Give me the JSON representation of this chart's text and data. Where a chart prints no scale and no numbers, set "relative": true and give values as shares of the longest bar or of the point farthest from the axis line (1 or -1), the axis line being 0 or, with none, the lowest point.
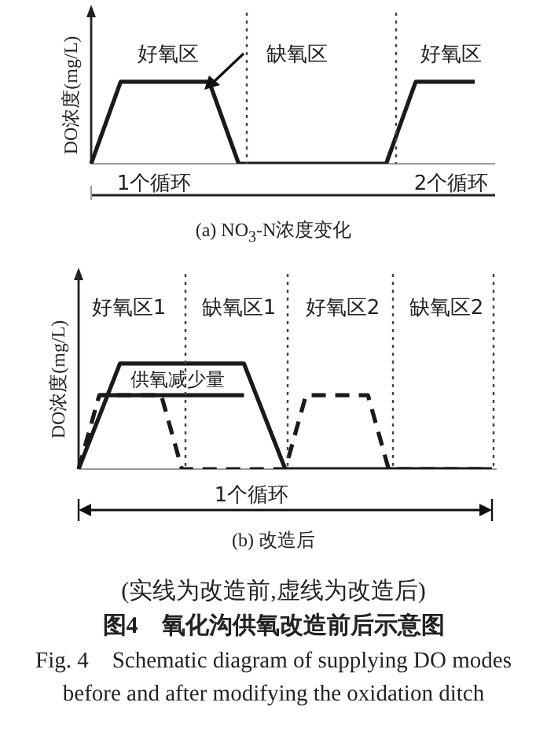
{
  "chart_data": [
    {
      "type": "line",
      "relative": true,
      "ylabel": "DO浓度(mg/L)",
      "xlabel": "(a) NO$_{3}$-N浓度变化",
      "legend": false,
      "marker": "none",
      "categories": [
        null,
        null,
        null,
        null,
        null,
        null,
        null,
        null,
        null,
        null,
        null,
        null,
        null,
        null
      ],
      "series": [
        {
          "color": "#1a1a1a",
          "line_style": "solid",
          "values": [
            0,
            1,
            1,
            1,
            1,
            0,
            0,
            0,
            0,
            0,
            0,
            1,
            1,
            1
          ]
        }
      ],
      "annotations": [
        "好氧区",
        "缺氧区",
        "好氧区",
        "1个循环",
        "2个循环"
      ]
    },
    {
      "type": "line",
      "relative": true,
      "ylabel": "DO浓度(mg/L)",
      "xlabel": "(b) 改造后",
      "legend": false,
      "marker": "none",
      "categories": [
        null,
        null,
        null,
        null,
        null,
        null,
        null,
        null,
        null,
        null,
        null,
        null,
        null,
        null,
        null,
        null,
        null,
        null,
        null,
        null,
        null
      ],
      "series": [
        {
          "color": "#1a1a1a",
          "line_style": "solid",
          "values": [
            0,
            0.5,
            1,
            1,
            1,
            1,
            1,
            1,
            1,
            0.5,
            0,
            0,
            0,
            0,
            0,
            0,
            0,
            0,
            0,
            0,
            0
          ]
        },
        {
          "color": "#1a1a1a",
          "line_style": "dashed",
          "values": [
            0,
            0.7,
            0.7,
            0.7,
            0.7,
            0,
            0,
            0,
            0,
            0,
            0,
            0.7,
            0.7,
            0.7,
            0.7,
            0,
            0,
            0,
            0,
            0,
            0
          ]
        },
        {
          "color": "#1a1a1a",
          "line_style": "solid",
          "values": [
            null,
            0.7,
            0.7,
            0.7,
            0.7,
            0.7,
            0.7,
            0.7,
            0.7,
            null,
            null,
            null,
            null,
            null,
            null,
            null,
            null,
            null,
            null,
            null,
            null
          ]
        }
      ],
      "annotations": [
        "好氧区1",
        "缺氧区1",
        "好氧区2",
        "缺氧区2",
        "供氧减少量",
        "1个循环",
        "(实线为改造前,虚线为改造后)",
        "图4　氧化沟供氧改造前后示意图",
        "Fig. 4　Schematic diagram of supplying DO modes before and after modifying the oxidation ditch"
      ]
    }
  ]
}
